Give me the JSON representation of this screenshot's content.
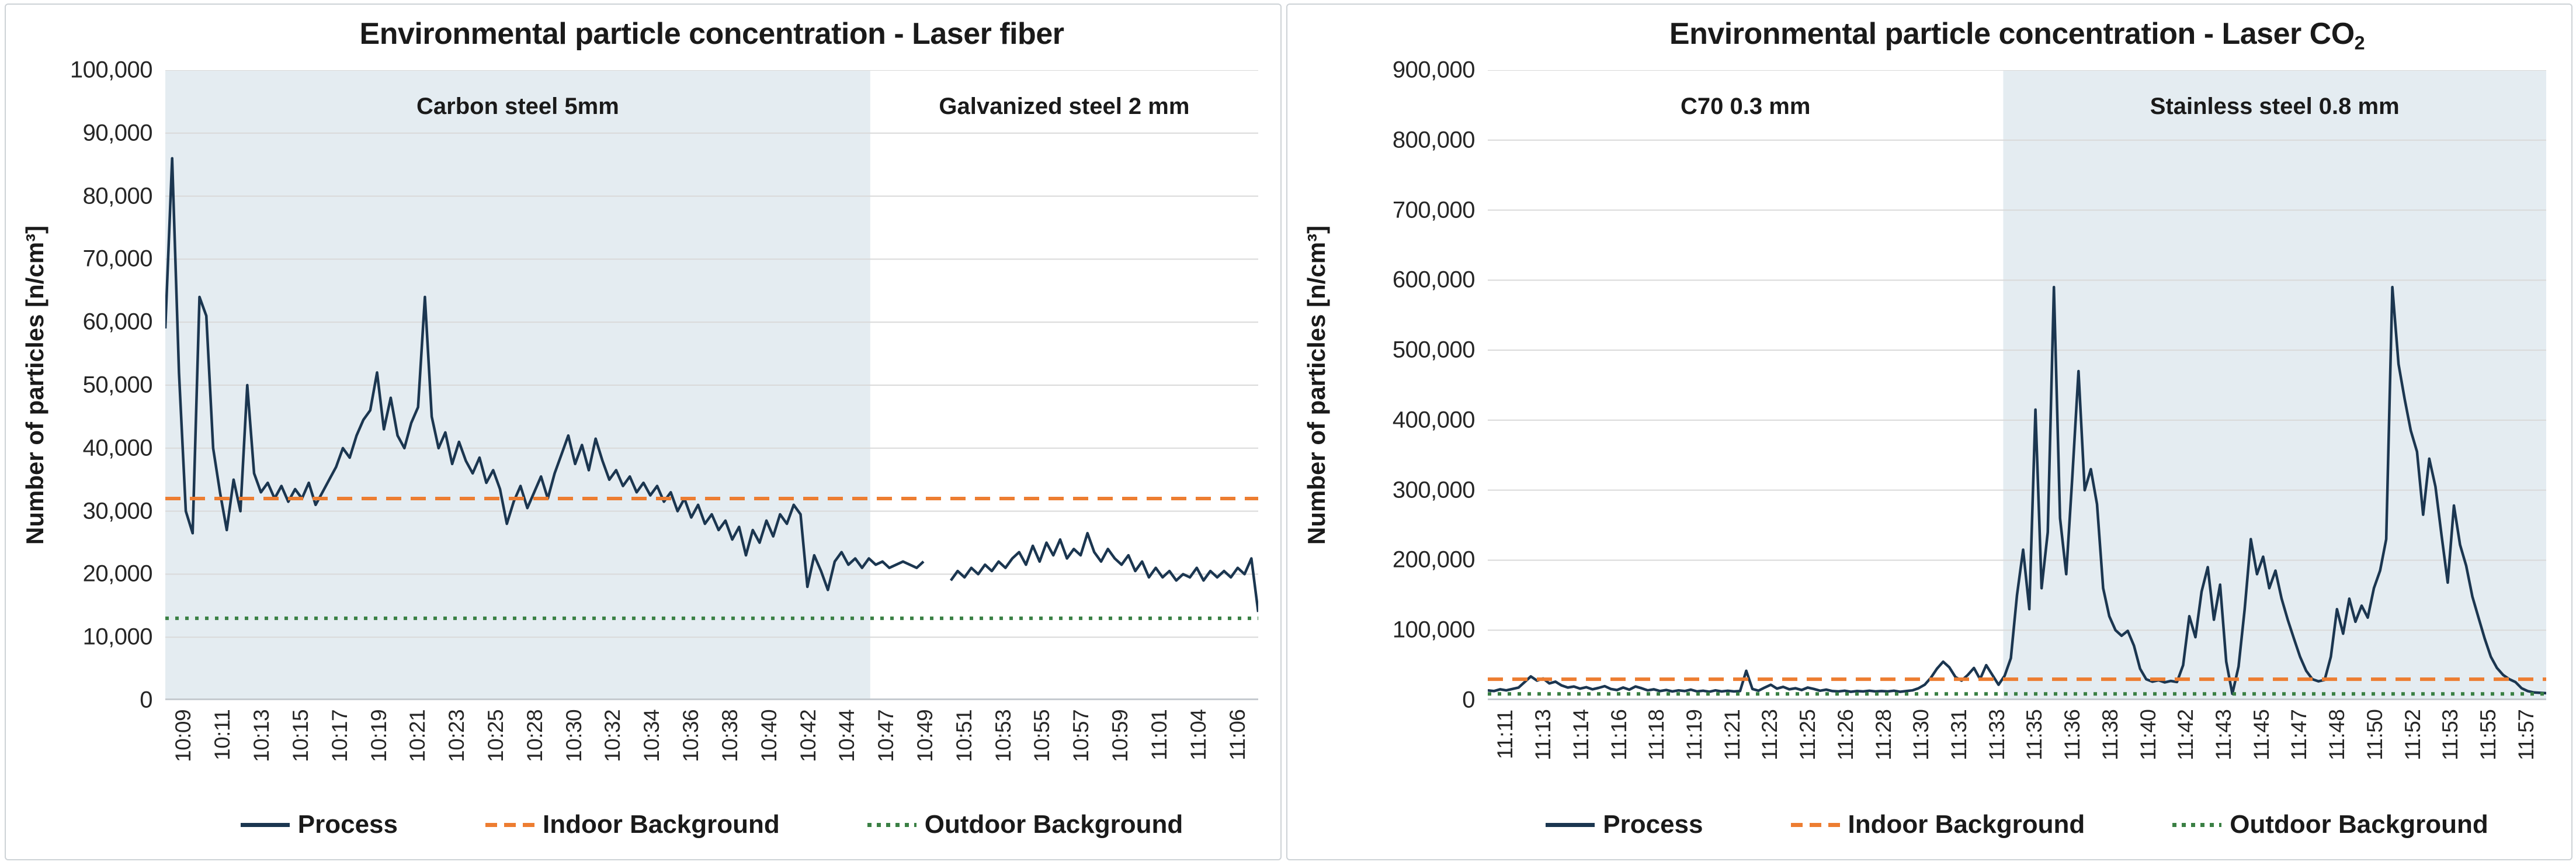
{
  "chart_data": [
    {
      "type": "line",
      "title": "Environmental particle concentration - Laser fiber",
      "title_subscript": "",
      "ylabel": "Number of particles [n/cm³]",
      "ylim": [
        0,
        100000
      ],
      "grid": true,
      "legend_position": "bottom",
      "yticks": {
        "values": [
          0,
          10000,
          20000,
          30000,
          40000,
          50000,
          60000,
          70000,
          80000,
          90000,
          100000
        ],
        "labels": [
          "0",
          "10,000",
          "20,000",
          "30,000",
          "40,000",
          "50,000",
          "60,000",
          "70,000",
          "80,000",
          "90,000",
          "100,000"
        ]
      },
      "xticks": [
        "10:09",
        "10:11",
        "10:13",
        "10:15",
        "10:17",
        "10:19",
        "10:21",
        "10:23",
        "10:25",
        "10:28",
        "10:30",
        "10:32",
        "10:34",
        "10:36",
        "10:38",
        "10:40",
        "10:42",
        "10:44",
        "10:47",
        "10:49",
        "10:51",
        "10:53",
        "10:55",
        "10:57",
        "10:59",
        "11:01",
        "11:04",
        "11:06"
      ],
      "regions": [
        {
          "label": "Carbon steel 5mm",
          "from": 0.0,
          "to": 0.645,
          "shaded": true
        },
        {
          "label": "Galvanized steel 2 mm",
          "from": 0.645,
          "to": 1.0,
          "shaded": false
        }
      ],
      "colors": {
        "shade": "#e4ecf1",
        "grid": "#d9d9d9",
        "axis": "#c6cbd0"
      },
      "series": [
        {
          "name": "Process",
          "style": "solid",
          "color": "#1b3650",
          "values": [
            59000,
            86000,
            52000,
            30000,
            26500,
            64000,
            61000,
            40000,
            33000,
            27000,
            35000,
            30000,
            50000,
            36000,
            33000,
            34500,
            32000,
            34000,
            31500,
            33500,
            32000,
            34500,
            31000,
            33000,
            35000,
            37000,
            40000,
            38500,
            42000,
            44500,
            46000,
            52000,
            43000,
            48000,
            42000,
            40000,
            44000,
            46500,
            64000,
            45000,
            40000,
            42500,
            37500,
            41000,
            38000,
            36000,
            38500,
            34500,
            36500,
            33500,
            28000,
            31500,
            34000,
            30500,
            33000,
            35500,
            32000,
            36000,
            39000,
            42000,
            37500,
            40500,
            36500,
            41500,
            38000,
            35000,
            36500,
            34000,
            35500,
            33000,
            34500,
            32500,
            34000,
            31500,
            33000,
            30000,
            32000,
            29000,
            31000,
            28000,
            29500,
            27000,
            28500,
            25500,
            27500,
            23000,
            27000,
            25000,
            28500,
            26000,
            29500,
            28000,
            31000,
            29500,
            18000,
            23000,
            20500,
            17500,
            22000,
            23500,
            21500,
            22500,
            21000,
            22500,
            21500,
            22000,
            21000,
            21500,
            22000,
            21500,
            21000,
            22000,
            null,
            null,
            null,
            19000,
            20500,
            19500,
            21000,
            20000,
            21500,
            20500,
            22000,
            21000,
            22500,
            23500,
            21500,
            24500,
            22000,
            25000,
            23000,
            25500,
            22500,
            24000,
            23000,
            26500,
            23500,
            22000,
            24000,
            22500,
            21500,
            23000,
            20500,
            22000,
            19500,
            21000,
            19500,
            20500,
            19000,
            20000,
            19500,
            21000,
            19000,
            20500,
            19500,
            20500,
            19500,
            21000,
            20000,
            22500,
            14000
          ]
        },
        {
          "name": "Indoor Background",
          "style": "dashed",
          "color": "#ed7d31",
          "value": 32000
        },
        {
          "name": "Outdoor Background",
          "style": "dotted",
          "color": "#3a8044",
          "value": 13000
        }
      ]
    },
    {
      "type": "line",
      "title": "Environmental particle concentration - Laser CO",
      "title_subscript": "2",
      "ylabel": "Number of particles [n/cm³]",
      "ylim": [
        0,
        900000
      ],
      "grid": true,
      "legend_position": "bottom",
      "yticks": {
        "values": [
          0,
          100000,
          200000,
          300000,
          400000,
          500000,
          600000,
          700000,
          800000,
          900000
        ],
        "labels": [
          "0",
          "100,000",
          "200,000",
          "300,000",
          "400,000",
          "500,000",
          "600,000",
          "700,000",
          "800,000",
          "900,000"
        ]
      },
      "xticks": [
        "11:11",
        "11:13",
        "11:14",
        "11:16",
        "11:18",
        "11:19",
        "11:21",
        "11:23",
        "11:25",
        "11:26",
        "11:28",
        "11:30",
        "11:31",
        "11:33",
        "11:35",
        "11:36",
        "11:38",
        "11:40",
        "11:42",
        "11:43",
        "11:45",
        "11:47",
        "11:48",
        "11:50",
        "11:52",
        "11:53",
        "11:55",
        "11:57"
      ],
      "regions": [
        {
          "label": "C70 0.3 mm",
          "from": 0.0,
          "to": 0.487,
          "shaded": false
        },
        {
          "label": "Stainless steel 0.8 mm",
          "from": 0.487,
          "to": 1.0,
          "shaded": true
        }
      ],
      "colors": {
        "shade": "#e4ecf1",
        "grid": "#d9d9d9",
        "axis": "#c6cbd0"
      },
      "series": [
        {
          "name": "Process",
          "style": "solid",
          "color": "#1b3650",
          "values": [
            14000,
            13000,
            15500,
            14000,
            16000,
            18000,
            26000,
            34000,
            28000,
            31000,
            24000,
            26500,
            21000,
            18000,
            19500,
            16500,
            18500,
            15500,
            17500,
            20000,
            16000,
            14500,
            18000,
            15000,
            19500,
            17000,
            14000,
            15500,
            13000,
            14500,
            12500,
            14000,
            13000,
            15000,
            12500,
            13500,
            12000,
            14000,
            12500,
            13500,
            12500,
            13000,
            42000,
            16000,
            13500,
            18000,
            22000,
            16500,
            19000,
            15500,
            17000,
            14500,
            18000,
            16000,
            13500,
            15000,
            13000,
            12500,
            13500,
            12000,
            13000,
            12500,
            13500,
            12500,
            13000,
            12500,
            13500,
            12000,
            13000,
            14000,
            17000,
            22000,
            32000,
            45000,
            55000,
            47000,
            33000,
            28000,
            36000,
            46000,
            30000,
            50000,
            36000,
            22000,
            35000,
            60000,
            150000,
            215000,
            130000,
            415000,
            160000,
            240000,
            590000,
            260000,
            180000,
            320000,
            470000,
            300000,
            330000,
            280000,
            160000,
            120000,
            100000,
            92000,
            99000,
            78000,
            45000,
            30000,
            26500,
            28500,
            25500,
            27500,
            26000,
            50000,
            120000,
            90000,
            155000,
            190000,
            115000,
            165000,
            55000,
            9000,
            48000,
            130000,
            230000,
            180000,
            205000,
            160000,
            185000,
            145000,
            115000,
            88000,
            62000,
            42000,
            30000,
            27000,
            29000,
            62000,
            130000,
            95000,
            145000,
            112000,
            135000,
            118000,
            160000,
            185000,
            230000,
            590000,
            480000,
            430000,
            385000,
            355000,
            265000,
            345000,
            305000,
            235000,
            168000,
            278000,
            222000,
            192000,
            148000,
            118000,
            88000,
            62000,
            46000,
            36000,
            30000,
            26000,
            17000,
            13000,
            11000,
            10500,
            10000
          ]
        },
        {
          "name": "Indoor Background",
          "style": "dashed",
          "color": "#ed7d31",
          "value": 30000
        },
        {
          "name": "Outdoor Background",
          "style": "dotted",
          "color": "#3a8044",
          "value": 9000
        }
      ]
    }
  ]
}
